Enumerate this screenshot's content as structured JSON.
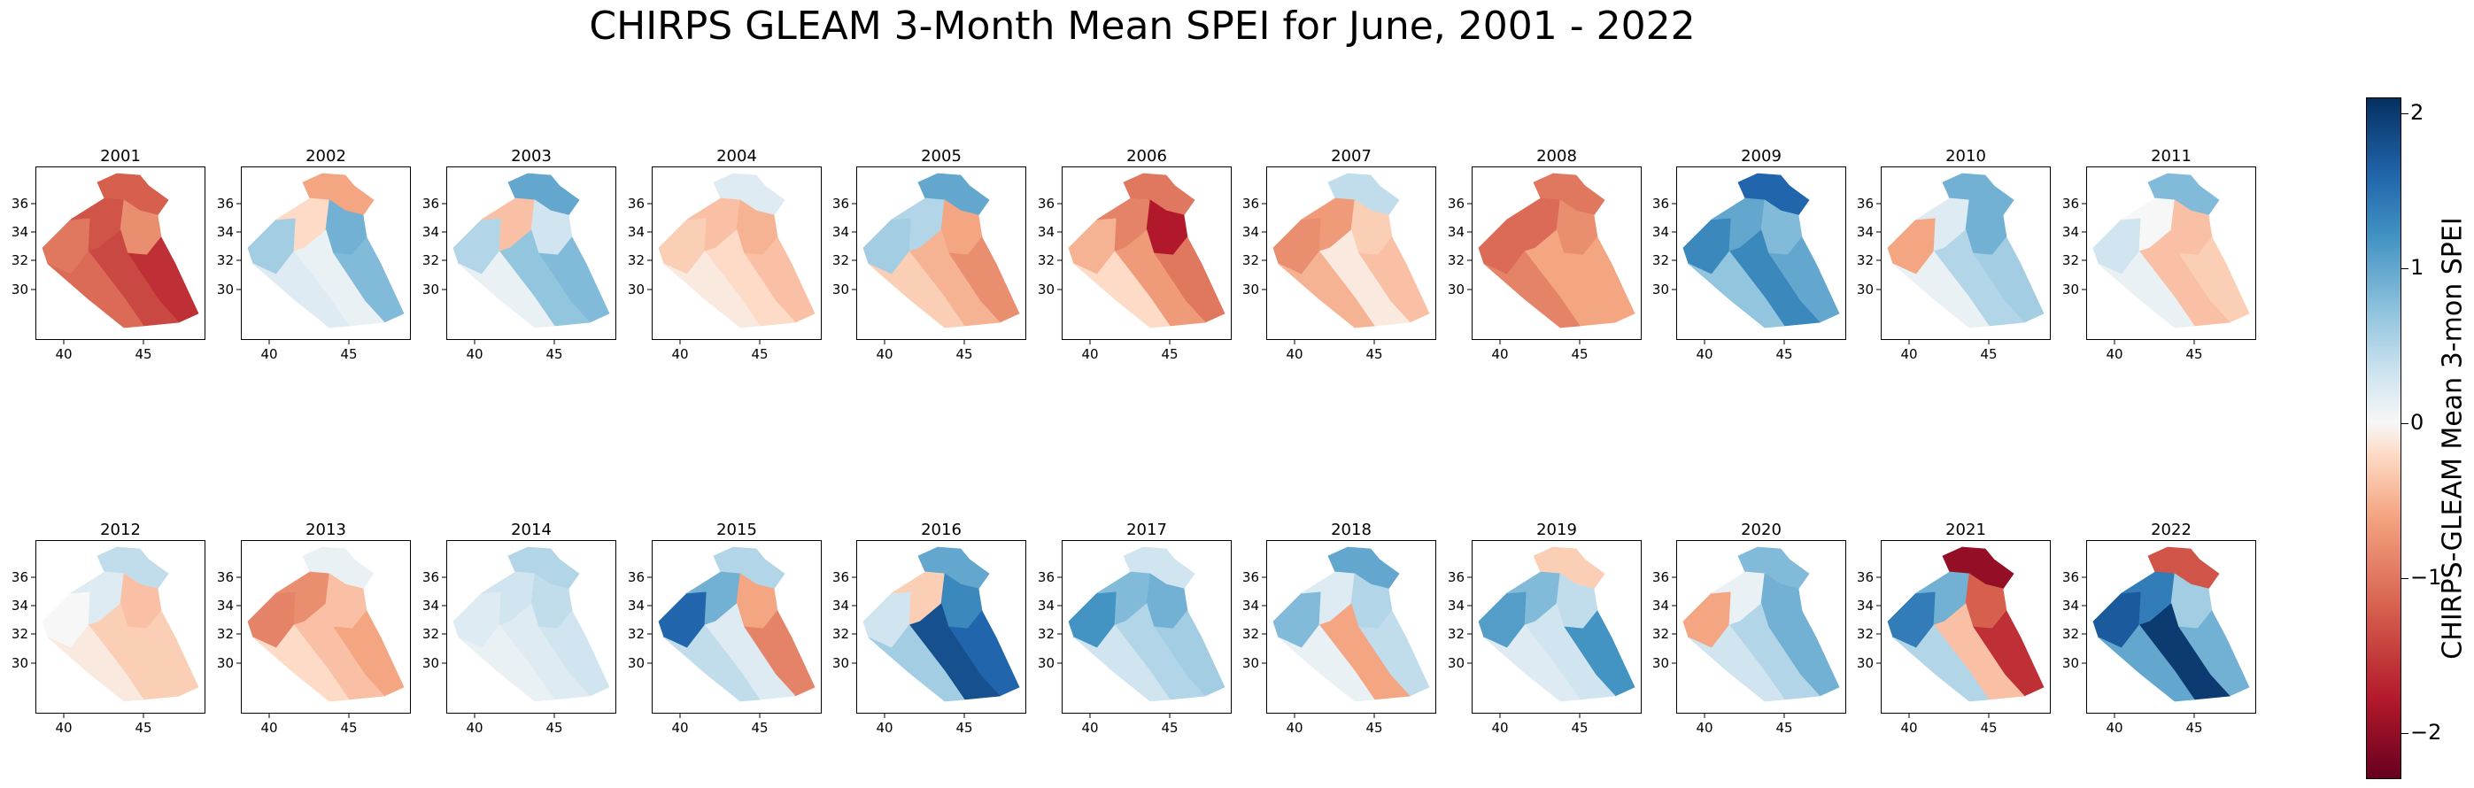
{
  "title": "CHIRPS GLEAM 3-Month Mean SPEI for June, 2001 - 2022",
  "colorbar": {
    "label": "CHIRPS-GLEAM Mean 3-mon SPEI",
    "ticks": [
      "2",
      "1",
      "0",
      "−1",
      "−2"
    ],
    "colormap": "RdBu",
    "range": [
      -2.3,
      2.1
    ]
  },
  "axes": {
    "yticks": [
      "36",
      "34",
      "32",
      "30"
    ],
    "xticks": [
      "40",
      "45"
    ]
  },
  "panels": [
    {
      "year": "2001",
      "regions": [
        -1.2,
        -1.0,
        -1.3,
        -0.8,
        -1.6,
        -1.4,
        -1.1
      ]
    },
    {
      "year": "2002",
      "regions": [
        -0.6,
        0.6,
        -0.2,
        0.9,
        0.8,
        0.1,
        0.2
      ]
    },
    {
      "year": "2003",
      "regions": [
        1.0,
        0.5,
        -0.4,
        0.3,
        0.8,
        0.7,
        0.1
      ]
    },
    {
      "year": "2004",
      "regions": [
        0.2,
        -0.3,
        -0.4,
        -0.5,
        -0.4,
        -0.2,
        -0.1
      ]
    },
    {
      "year": "2005",
      "regions": [
        1.0,
        0.6,
        0.5,
        -0.6,
        -0.8,
        -0.5,
        -0.3
      ]
    },
    {
      "year": "2006",
      "regions": [
        -1.0,
        -0.5,
        -0.9,
        -1.8,
        -1.0,
        -0.7,
        -0.2
      ]
    },
    {
      "year": "2007",
      "regions": [
        0.4,
        -0.8,
        -0.7,
        -0.3,
        -0.4,
        -0.1,
        -0.5
      ]
    },
    {
      "year": "2008",
      "regions": [
        -1.0,
        -1.1,
        -1.1,
        -0.8,
        -0.6,
        -0.6,
        -0.9
      ]
    },
    {
      "year": "2009",
      "regions": [
        1.6,
        1.3,
        1.0,
        0.8,
        1.0,
        1.3,
        0.7
      ]
    },
    {
      "year": "2010",
      "regions": [
        0.9,
        -0.6,
        0.2,
        0.9,
        0.6,
        0.5,
        0.1
      ]
    },
    {
      "year": "2011",
      "regions": [
        0.8,
        0.3,
        0.0,
        -0.4,
        -0.3,
        -0.4,
        0.1
      ]
    },
    {
      "year": "2012",
      "regions": [
        0.4,
        0.0,
        0.2,
        -0.4,
        -0.3,
        -0.3,
        -0.1
      ]
    },
    {
      "year": "2013",
      "regions": [
        0.1,
        -0.9,
        -0.8,
        -0.4,
        -0.6,
        -0.4,
        -0.2
      ]
    },
    {
      "year": "2014",
      "regions": [
        0.5,
        0.2,
        0.3,
        0.4,
        0.3,
        0.2,
        0.1
      ]
    },
    {
      "year": "2015",
      "regions": [
        0.5,
        1.6,
        0.9,
        -0.6,
        -0.9,
        0.2,
        0.4
      ]
    },
    {
      "year": "2016",
      "regions": [
        1.0,
        0.3,
        -0.3,
        1.3,
        1.6,
        1.8,
        0.6
      ]
    },
    {
      "year": "2017",
      "regions": [
        0.3,
        1.2,
        0.8,
        0.9,
        0.6,
        0.5,
        0.3
      ]
    },
    {
      "year": "2018",
      "regions": [
        1.0,
        0.8,
        0.2,
        0.5,
        0.4,
        -0.6,
        0.1
      ]
    },
    {
      "year": "2019",
      "regions": [
        -0.3,
        1.1,
        0.8,
        0.4,
        1.2,
        0.3,
        0.2
      ]
    },
    {
      "year": "2020",
      "regions": [
        0.8,
        -0.6,
        0.1,
        0.9,
        0.9,
        0.5,
        0.3
      ]
    },
    {
      "year": "2021",
      "regions": [
        -2.0,
        1.4,
        0.9,
        -1.2,
        -1.6,
        -0.4,
        0.5
      ]
    },
    {
      "year": "2022",
      "regions": [
        -1.3,
        1.7,
        1.4,
        0.6,
        0.9,
        2.0,
        1.0
      ]
    }
  ]
}
